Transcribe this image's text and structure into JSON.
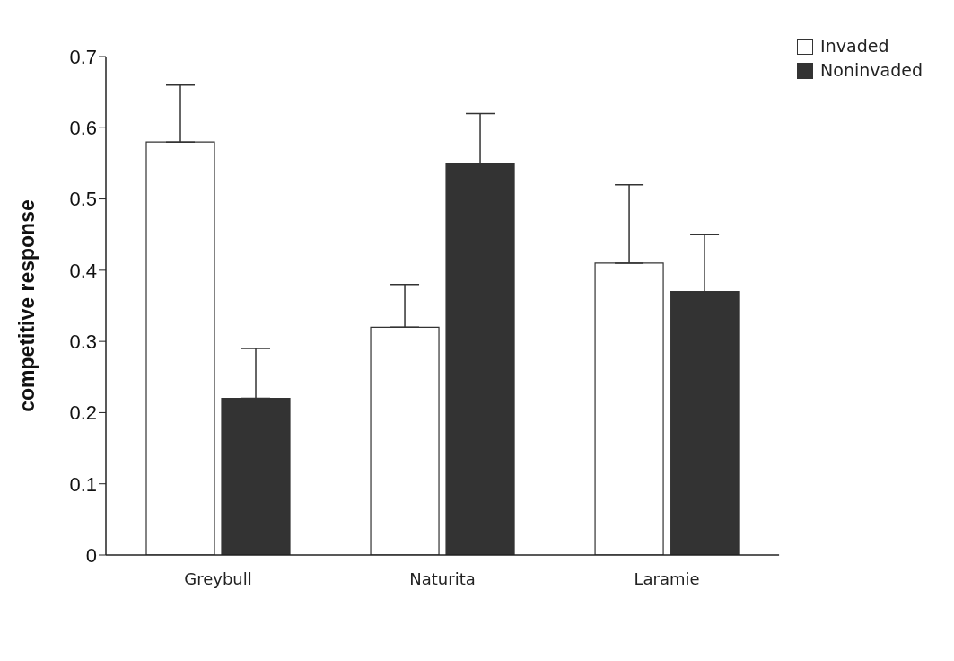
{
  "chart_data": {
    "type": "bar",
    "ylabel": "competitive response",
    "categories": [
      "Greybull",
      "Naturita",
      "Laramie"
    ],
    "series": [
      {
        "name": "Invaded",
        "color": "#ffffff",
        "values": [
          0.58,
          0.32,
          0.41
        ],
        "errors": [
          [
            0.58,
            0.66
          ],
          [
            0.32,
            0.38
          ],
          [
            0.41,
            0.52
          ]
        ]
      },
      {
        "name": "Noninvaded",
        "color": "#333333",
        "values": [
          0.22,
          0.55,
          0.37
        ],
        "errors": [
          [
            0.22,
            0.29
          ],
          [
            0.55,
            0.62
          ],
          [
            0.37,
            0.45
          ]
        ]
      }
    ],
    "ylim": [
      0,
      0.7
    ],
    "yticks": [
      0,
      0.1,
      0.2,
      0.3,
      0.4,
      0.5,
      0.6,
      0.7
    ],
    "grid": false,
    "legend": "top right"
  }
}
